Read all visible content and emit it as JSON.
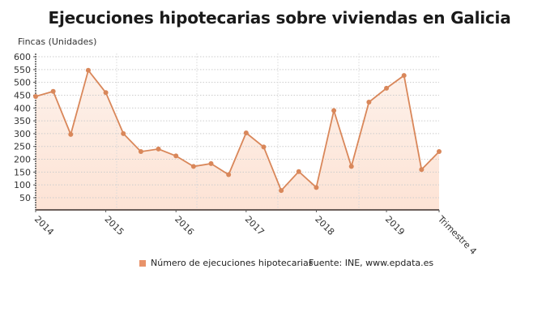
{
  "title": "Ejecuciones hipotecarias sobre viviendas en Galicia",
  "y_axis_title": "Fincas (Unidades)",
  "legend": {
    "label": "Número de ejecuciones hipotecarias",
    "color": "#e8936a"
  },
  "source": "Fuente: INE, www.epdata.es",
  "colors": {
    "line": "#d9875a",
    "fill_top": "#fde3d5",
    "fill_bottom": "#fdf1ea",
    "grid": "#cccccc",
    "axis": "#555555"
  },
  "chart_data": {
    "type": "area",
    "title": "Ejecuciones hipotecarias sobre viviendas en Galicia",
    "xlabel": "",
    "ylabel": "Fincas (Unidades)",
    "x": [
      "2014 T1",
      "2014 T2",
      "2014 T3",
      "2014 T4",
      "2015 T1",
      "2015 T2",
      "2015 T3",
      "2015 T4",
      "2016 T1",
      "2016 T2",
      "2016 T3",
      "2016 T4",
      "2017 T1",
      "2017 T2",
      "2017 T3",
      "2017 T4",
      "2018 T1",
      "2018 T2",
      "2018 T3",
      "2018 T4",
      "2019 T1",
      "2019 T2",
      "2019 T3",
      "2019 T4"
    ],
    "x_tick_labels": [
      {
        "index": 0,
        "label": "2014"
      },
      {
        "index": 4,
        "label": "2015"
      },
      {
        "index": 8,
        "label": "2016"
      },
      {
        "index": 12,
        "label": "2017"
      },
      {
        "index": 16,
        "label": "2018"
      },
      {
        "index": 20,
        "label": "2019"
      },
      {
        "index": 23,
        "label": "Trimestre 4"
      }
    ],
    "series": [
      {
        "name": "Número de ejecuciones hipotecarias",
        "values": [
          445,
          465,
          297,
          547,
          460,
          300,
          230,
          240,
          213,
          172,
          183,
          140,
          303,
          248,
          78,
          152,
          90,
          390,
          172,
          423,
          477,
          527,
          160,
          230
        ]
      }
    ],
    "y_ticks": [
      50,
      100,
      150,
      200,
      250,
      300,
      350,
      400,
      450,
      500,
      550,
      600
    ],
    "ylim": [
      5,
      605
    ],
    "grid": true,
    "legend_position": "bottom",
    "source": "Fuente: INE, www.epdata.es"
  }
}
